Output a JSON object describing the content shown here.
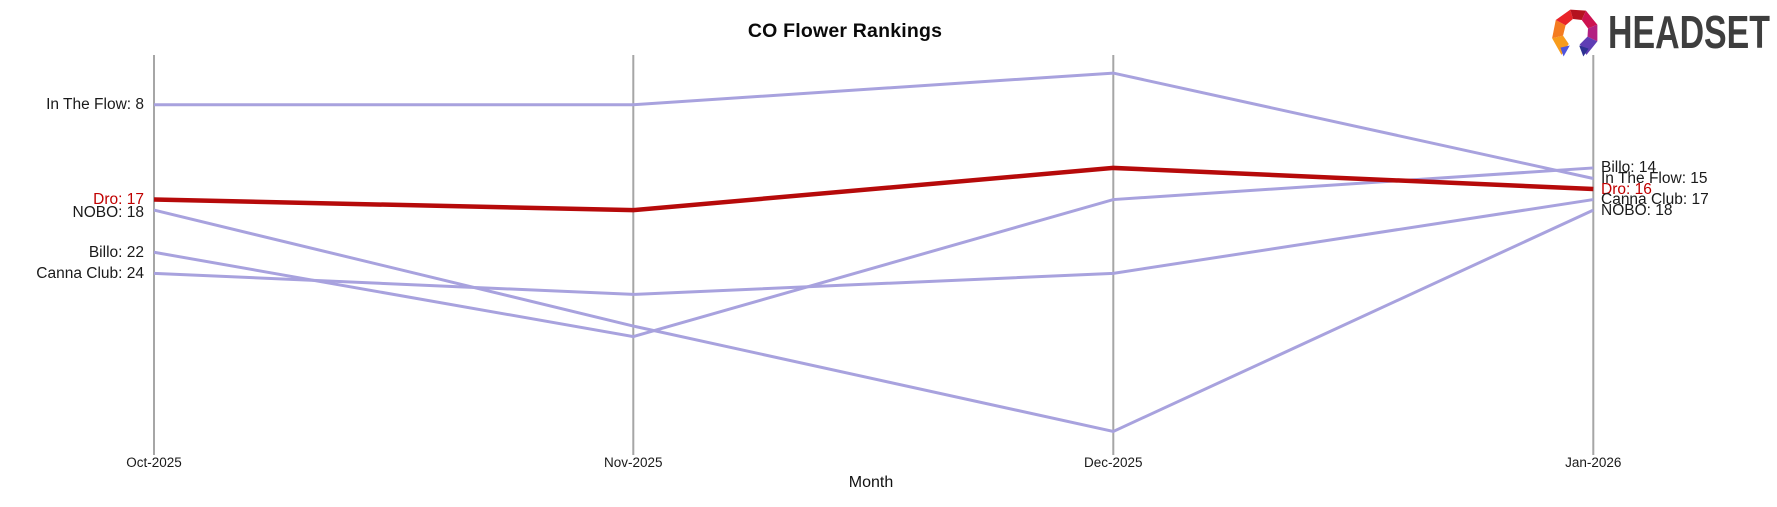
{
  "branding": {
    "logo_text": "HEADSET"
  },
  "chart_data": {
    "type": "line",
    "variant": "bump-ranking",
    "title": "CO Flower Rankings",
    "xlabel": "Month",
    "x": [
      "Oct-2025",
      "Nov-2025",
      "Dec-2025",
      "Jan-2026"
    ],
    "y_axis": {
      "inverted": true,
      "unit": "rank",
      "approx_visible_range": [
        5,
        39
      ]
    },
    "grid": "vertical-month-axes-only",
    "legend": "endpoint-labels",
    "series": [
      {
        "name": "In The Flow",
        "values": [
          8,
          8,
          5,
          15
        ],
        "color": "#a8a2de",
        "width": 3,
        "emphasis": false
      },
      {
        "name": "Dro",
        "values": [
          17,
          18,
          14,
          16
        ],
        "color": "#b60a0a",
        "width": 4.5,
        "emphasis": true
      },
      {
        "name": "NOBO",
        "values": [
          18,
          29,
          39,
          18
        ],
        "color": "#a8a2de",
        "width": 3,
        "emphasis": false
      },
      {
        "name": "Billo",
        "values": [
          22,
          30,
          17,
          14
        ],
        "color": "#a8a2de",
        "width": 3,
        "emphasis": false
      },
      {
        "name": "Canna Club",
        "values": [
          24,
          26,
          24,
          17
        ],
        "color": "#a8a2de",
        "width": 3,
        "emphasis": false
      }
    ],
    "endpoint_labels": {
      "left": [
        {
          "text": "In The Flow: 8",
          "value": 8,
          "color": "#1a1a1a"
        },
        {
          "text": "Dro: 17",
          "value": 17,
          "color": "#c00000"
        },
        {
          "text": "NOBO: 18",
          "value": 18.2,
          "color": "#1a1a1a"
        },
        {
          "text": "Billo: 22",
          "value": 22,
          "color": "#1a1a1a"
        },
        {
          "text": "Canna Club: 24",
          "value": 24,
          "color": "#1a1a1a"
        }
      ],
      "right": [
        {
          "text": "Billo: 14",
          "value": 14,
          "color": "#1a1a1a"
        },
        {
          "text": "In The Flow: 15",
          "value": 15,
          "color": "#1a1a1a"
        },
        {
          "text": "Dro: 16",
          "value": 16,
          "color": "#c00000"
        },
        {
          "text": "Canna Club: 17",
          "value": 17,
          "color": "#1a1a1a"
        },
        {
          "text": "NOBO: 18",
          "value": 18,
          "color": "#1a1a1a"
        }
      ]
    },
    "colors": {
      "axis": "#a6a6a6",
      "text": "#1a1a1a",
      "line_purple": "#a8a2de",
      "line_red": "#b60a0a",
      "label_red": "#c00000"
    }
  }
}
